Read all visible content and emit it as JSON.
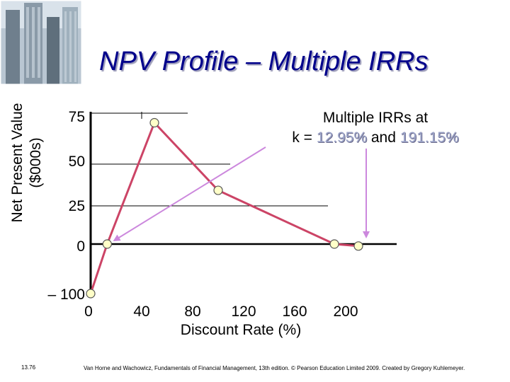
{
  "slide": {
    "title": "NPV Profile – Multiple IRRs",
    "page_number": "13.76",
    "footer": "Van Horne and Wachowicz, Fundamentals of Financial Management, 13th edition. © Pearson Education Limited 2009. Created by Gregory Kuhlemeyer."
  },
  "annotation": {
    "line1": "Multiple IRRs at",
    "prefix": "k = ",
    "irr1": "12.95%",
    "middle": " and ",
    "irr2": "191.15%"
  },
  "chart_data": {
    "type": "line",
    "xlabel": "Discount Rate (%)",
    "ylabel_line1": "Net Present Value",
    "ylabel_line2": "($000s)",
    "x_ticks": [
      "0",
      "40",
      "80",
      "120",
      "160",
      "200"
    ],
    "y_ticks": [
      "75",
      "50",
      "25",
      "0",
      "– 100"
    ],
    "series": [
      {
        "points": [
          {
            "x": 0,
            "y": -100
          },
          {
            "x": 12.95,
            "y": 0
          },
          {
            "x": 50,
            "y": 70
          },
          {
            "x": 100,
            "y": 31
          },
          {
            "x": 191.15,
            "y": 0
          },
          {
            "x": 210,
            "y": -4
          }
        ]
      }
    ],
    "colors": {
      "line": "#cc4466",
      "marker_fill": "#ffffc8",
      "marker_stroke": "#555555",
      "arrow": "#cc88dd",
      "title": "#00008b"
    }
  }
}
